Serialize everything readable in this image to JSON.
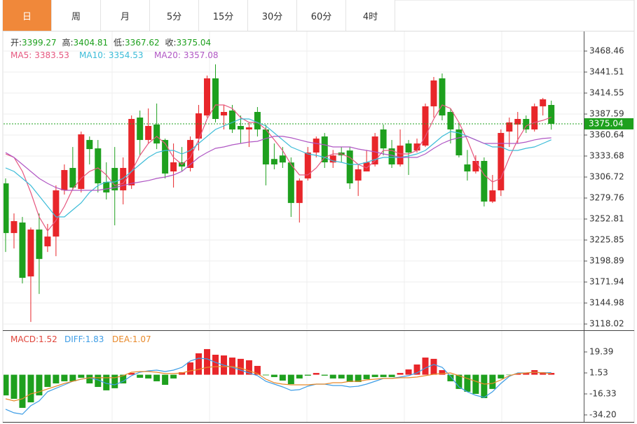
{
  "tabs": [
    "日",
    "周",
    "月",
    "5分",
    "15分",
    "30分",
    "60分",
    "4时"
  ],
  "active_tab": 0,
  "chart_data": [
    {
      "type": "candlestick",
      "up_color": "#e8262a",
      "down_color": "#1ea01e",
      "ohlc_labels": [
        "开:",
        "高:",
        "低:",
        "收:"
      ],
      "open": [
        3298.6,
        3234.8,
        3248.3,
        3179.1,
        3239.3,
        3217.7,
        3230.3,
        3289.6,
        3318.4,
        3291.4,
        3354.3,
        3343.5,
        3300.4,
        3318.4,
        3289.6,
        3296.0,
        3383.1,
        3354.3,
        3374.1,
        3354.3,
        3313.9,
        3325.6,
        3318.4,
        3356.1,
        3385.8,
        3433.4,
        3385.8,
        3392.1,
        3372.3,
        3367.8,
        3390.3,
        3367.8,
        3329.9,
        3334.4,
        3325.4,
        3273.4,
        3304.9,
        3338.2,
        3358.8,
        3325.4,
        3338.2,
        3340.8,
        3302.2,
        3313.9,
        3322.9,
        3367.8,
        3343.5,
        3322.9,
        3349.8,
        3340.8,
        3347.1,
        3397.5,
        3433.4,
        3390.3,
        3367.8,
        3322.9,
        3313.9,
        3327.4,
        3275.2,
        3289.6,
        3365.1,
        3374.1,
        3381.3,
        3367.8,
        3397.5,
        3399.27
      ],
      "high": [
        3304.9,
        3260.0,
        3255.5,
        3242.0,
        3260.0,
        3246.5,
        3296.0,
        3322.9,
        3345.3,
        3365.1,
        3358.8,
        3354.3,
        3325.6,
        3345.3,
        3331.9,
        3385.8,
        3392.1,
        3394.8,
        3401.1,
        3356.1,
        3349.8,
        3345.3,
        3358.8,
        3399.3,
        3437.0,
        3451.4,
        3399.3,
        3399.3,
        3385.8,
        3376.8,
        3396.6,
        3374.1,
        3349.8,
        3345.3,
        3331.9,
        3304.9,
        3345.3,
        3358.8,
        3363.3,
        3341.5,
        3345.3,
        3345.3,
        3322.9,
        3341.5,
        3363.3,
        3374.1,
        3354.3,
        3367.8,
        3354.3,
        3356.1,
        3401.1,
        3435.2,
        3439.7,
        3394.8,
        3376.8,
        3341.5,
        3334.6,
        3331.9,
        3309.4,
        3367.8,
        3383.1,
        3390.3,
        3385.8,
        3401.1,
        3408.3,
        3404.81
      ],
      "low": [
        3210.5,
        3215.0,
        3170.1,
        3120.7,
        3156.6,
        3210.5,
        3205.1,
        3284.2,
        3289.6,
        3286.9,
        3322.9,
        3286.9,
        3277.9,
        3244.7,
        3271.6,
        3291.4,
        3334.6,
        3349.8,
        3342.6,
        3304.9,
        3293.2,
        3313.9,
        3313.9,
        3340.8,
        3383.1,
        3376.8,
        3367.8,
        3363.3,
        3349.8,
        3345.3,
        3358.8,
        3296.0,
        3316.6,
        3318.4,
        3255.5,
        3248.3,
        3302.2,
        3331.9,
        3318.4,
        3318.4,
        3325.6,
        3291.4,
        3282.4,
        3313.9,
        3320.2,
        3334.6,
        3318.4,
        3320.2,
        3309.4,
        3338.2,
        3345.3,
        3383.1,
        3379.5,
        3349.8,
        3331.9,
        3302.2,
        3311.2,
        3268.9,
        3273.4,
        3282.4,
        3345.3,
        3349.8,
        3363.3,
        3365.1,
        3385.8,
        3367.62
      ],
      "close": [
        3234.8,
        3250.1,
        3177.3,
        3239.3,
        3201.5,
        3230.3,
        3289.6,
        3315.7,
        3293.2,
        3361.5,
        3342.6,
        3298.6,
        3286.9,
        3289.6,
        3318.4,
        3381.3,
        3354.3,
        3372.3,
        3349.8,
        3311.2,
        3325.6,
        3320.2,
        3354.3,
        3388.5,
        3433.4,
        3381.3,
        3390.3,
        3367.8,
        3367.8,
        3370.5,
        3367.8,
        3322.9,
        3322.9,
        3325.4,
        3273.4,
        3302.2,
        3338.2,
        3356.1,
        3325.6,
        3334.4,
        3334.6,
        3298.6,
        3316.6,
        3325.6,
        3358.8,
        3343.5,
        3322.9,
        3347.1,
        3338.2,
        3349.8,
        3397.5,
        3430.7,
        3385.8,
        3367.8,
        3334.6,
        3313.9,
        3327.4,
        3275.2,
        3289.6,
        3363.3,
        3376.8,
        3381.3,
        3367.8,
        3397.5,
        3406.5,
        3375.04
      ],
      "series": [
        {
          "name": "MA5:",
          "color": "#e6577f",
          "values": [
            3336.4,
            3331.9,
            3313.9,
            3287.0,
            3255.5,
            3237.5,
            3251.0,
            3269.0,
            3291.5,
            3304.9,
            3313.9,
            3318.4,
            3309.4,
            3295.9,
            3298.6,
            3313.9,
            3334.6,
            3349.9,
            3358.9,
            3349.9,
            3331.9,
            3322.9,
            3331.9,
            3354.4,
            3381.3,
            3399.3,
            3399.3,
            3394.8,
            3383.1,
            3376.8,
            3376.8,
            3367.8,
            3354.4,
            3340.9,
            3322.9,
            3309.4,
            3309.4,
            3318.4,
            3331.9,
            3336.4,
            3336.4,
            3331.9,
            3322.9,
            3318.4,
            3327.4,
            3340.9,
            3340.9,
            3336.4,
            3336.4,
            3340.9,
            3358.9,
            3381.3,
            3399.3,
            3394.8,
            3376.8,
            3354.4,
            3327.4,
            3309.4,
            3300.4,
            3304.9,
            3331.9,
            3354.4,
            3372.3,
            3376.8,
            3379.5,
            3383.53
          ]
        },
        {
          "name": "MA10:",
          "color": "#3cbcd8",
          "values": [
            3318.4,
            3313.9,
            3304.9,
            3295.9,
            3282.5,
            3269.0,
            3255.5,
            3255.5,
            3264.5,
            3273.5,
            3287.0,
            3295.9,
            3300.4,
            3300.4,
            3304.9,
            3313.9,
            3322.9,
            3331.9,
            3338.2,
            3340.9,
            3340.9,
            3336.4,
            3340.9,
            3349.9,
            3358.9,
            3367.8,
            3372.3,
            3376.8,
            3381.3,
            3381.3,
            3376.8,
            3372.3,
            3363.3,
            3354.4,
            3345.4,
            3340.9,
            3336.4,
            3334.6,
            3331.9,
            3327.4,
            3325.6,
            3322.9,
            3322.9,
            3325.6,
            3329.2,
            3331.9,
            3331.9,
            3331.9,
            3333.7,
            3336.4,
            3340.9,
            3349.9,
            3358.9,
            3365.1,
            3363.3,
            3358.9,
            3354.4,
            3349.9,
            3345.4,
            3345.4,
            3340.9,
            3340.9,
            3343.6,
            3345.4,
            3349.9,
            3354.53
          ]
        },
        {
          "name": "MA20:",
          "color": "#b057c4",
          "values": [
            3338.2,
            3331.9,
            3322.9,
            3313.9,
            3304.9,
            3298.6,
            3293.2,
            3289.7,
            3289.7,
            3289.7,
            3289.7,
            3289.7,
            3291.5,
            3293.2,
            3295.9,
            3298.6,
            3300.4,
            3302.2,
            3304.9,
            3306.7,
            3309.4,
            3313.9,
            3322.9,
            3331.9,
            3338.2,
            3343.6,
            3345.4,
            3348.1,
            3349.9,
            3351.7,
            3352.6,
            3356.2,
            3358.9,
            3358.9,
            3357.1,
            3354.4,
            3351.7,
            3349.9,
            3348.1,
            3345.4,
            3345.4,
            3345.4,
            3342.7,
            3340.9,
            3339.1,
            3336.4,
            3334.6,
            3331.9,
            3331.9,
            3331.9,
            3336.4,
            3343.6,
            3349.9,
            3354.4,
            3357.1,
            3358.9,
            3354.4,
            3349.9,
            3349.9,
            3349.9,
            3349.9,
            3349.9,
            3351.7,
            3354.4,
            3356.2,
            3357.08
          ]
        }
      ],
      "ylim": [
        3110,
        3493.6
      ],
      "yticks": [
        3118.02,
        3144.98,
        3171.94,
        3198.89,
        3225.85,
        3252.81,
        3279.76,
        3306.72,
        3333.68,
        3360.64,
        3387.59,
        3414.55,
        3441.51,
        3468.46
      ],
      "grid": true
    },
    {
      "type": "macd",
      "up_color": "#e8262a",
      "down_color": "#1ea01e",
      "series": [
        {
          "name": "MACD:",
          "color": "#e0443a",
          "values": [
            -17.6,
            -20.5,
            -28.2,
            -23.5,
            -17.6,
            -10.4,
            -7.4,
            -5.6,
            -5.6,
            -2.6,
            -7.4,
            -10.4,
            -13.3,
            -11.5,
            -7.4,
            1.5,
            -2.6,
            -3.2,
            -5.6,
            -8.6,
            -3.2,
            2.1,
            10.5,
            18.2,
            21.8,
            17.0,
            16.4,
            14.6,
            13.5,
            12.3,
            7.5,
            -0.5,
            -2.0,
            -5.0,
            -8.0,
            -3.2,
            -0.8,
            1.5,
            -0.8,
            -3.2,
            -3.2,
            -6.2,
            -6.2,
            -3.8,
            -2.0,
            -2.0,
            -2.0,
            1.5,
            4.5,
            8.7,
            14.6,
            13.5,
            3.9,
            -5.6,
            -12.1,
            -14.5,
            -16.3,
            -19.9,
            -12.1,
            -3.2,
            -0.3,
            1.0,
            1.5,
            3.9,
            2.1,
            1.52
          ]
        },
        {
          "name": "DIFF:",
          "color": "#3d9de6",
          "values": [
            -29.4,
            -32.4,
            -33.6,
            -26.4,
            -22.3,
            -14.5,
            -11.5,
            -8.6,
            -5.6,
            -3.8,
            -2.6,
            -4.4,
            -7.4,
            -8.6,
            -5.6,
            -0.8,
            2.1,
            3.3,
            3.9,
            2.7,
            3.9,
            6.3,
            11.7,
            14.0,
            13.5,
            10.5,
            8.1,
            6.3,
            3.9,
            1.5,
            -0.8,
            -5.6,
            -8.0,
            -10.4,
            -13.3,
            -12.7,
            -9.8,
            -8.0,
            -8.0,
            -9.2,
            -9.2,
            -10.4,
            -9.8,
            -8.0,
            -5.6,
            -3.2,
            -3.2,
            -2.0,
            -0.8,
            1.5,
            5.7,
            8.7,
            6.3,
            -1.4,
            -10.4,
            -14.5,
            -17.5,
            -19.3,
            -14.5,
            -7.4,
            -1.4,
            1.5,
            1.5,
            2.1,
            1.5,
            1.83
          ]
        },
        {
          "name": "DEA:",
          "color": "#e8892a",
          "values": [
            -20.5,
            -22.3,
            -20.5,
            -16.3,
            -14.5,
            -12.1,
            -9.8,
            -7.4,
            -5.6,
            -3.8,
            -2.6,
            -2.6,
            -2.6,
            -2.6,
            -0.8,
            2.1,
            2.7,
            2.7,
            2.1,
            1.0,
            1.0,
            1.5,
            3.3,
            4.5,
            6.3,
            6.9,
            6.9,
            6.9,
            5.7,
            3.3,
            1.0,
            -3.8,
            -6.8,
            -8.0,
            -8.6,
            -8.6,
            -8.6,
            -8.0,
            -8.0,
            -6.8,
            -6.8,
            -5.6,
            -5.6,
            -4.4,
            -3.8,
            -3.2,
            -3.2,
            -2.6,
            -2.6,
            -2.0,
            -0.8,
            0.4,
            1.0,
            1.5,
            -0.8,
            -3.2,
            -5.6,
            -8.0,
            -7.4,
            -4.4,
            -0.8,
            1.0,
            1.5,
            2.1,
            1.5,
            1.07
          ]
        }
      ],
      "ylim": [
        -40.15,
        36.65
      ],
      "yticks": [
        19.39,
        1.53,
        -16.33,
        {
          "value": -34.2,
          "label": "-34.20"
        }
      ]
    }
  ]
}
